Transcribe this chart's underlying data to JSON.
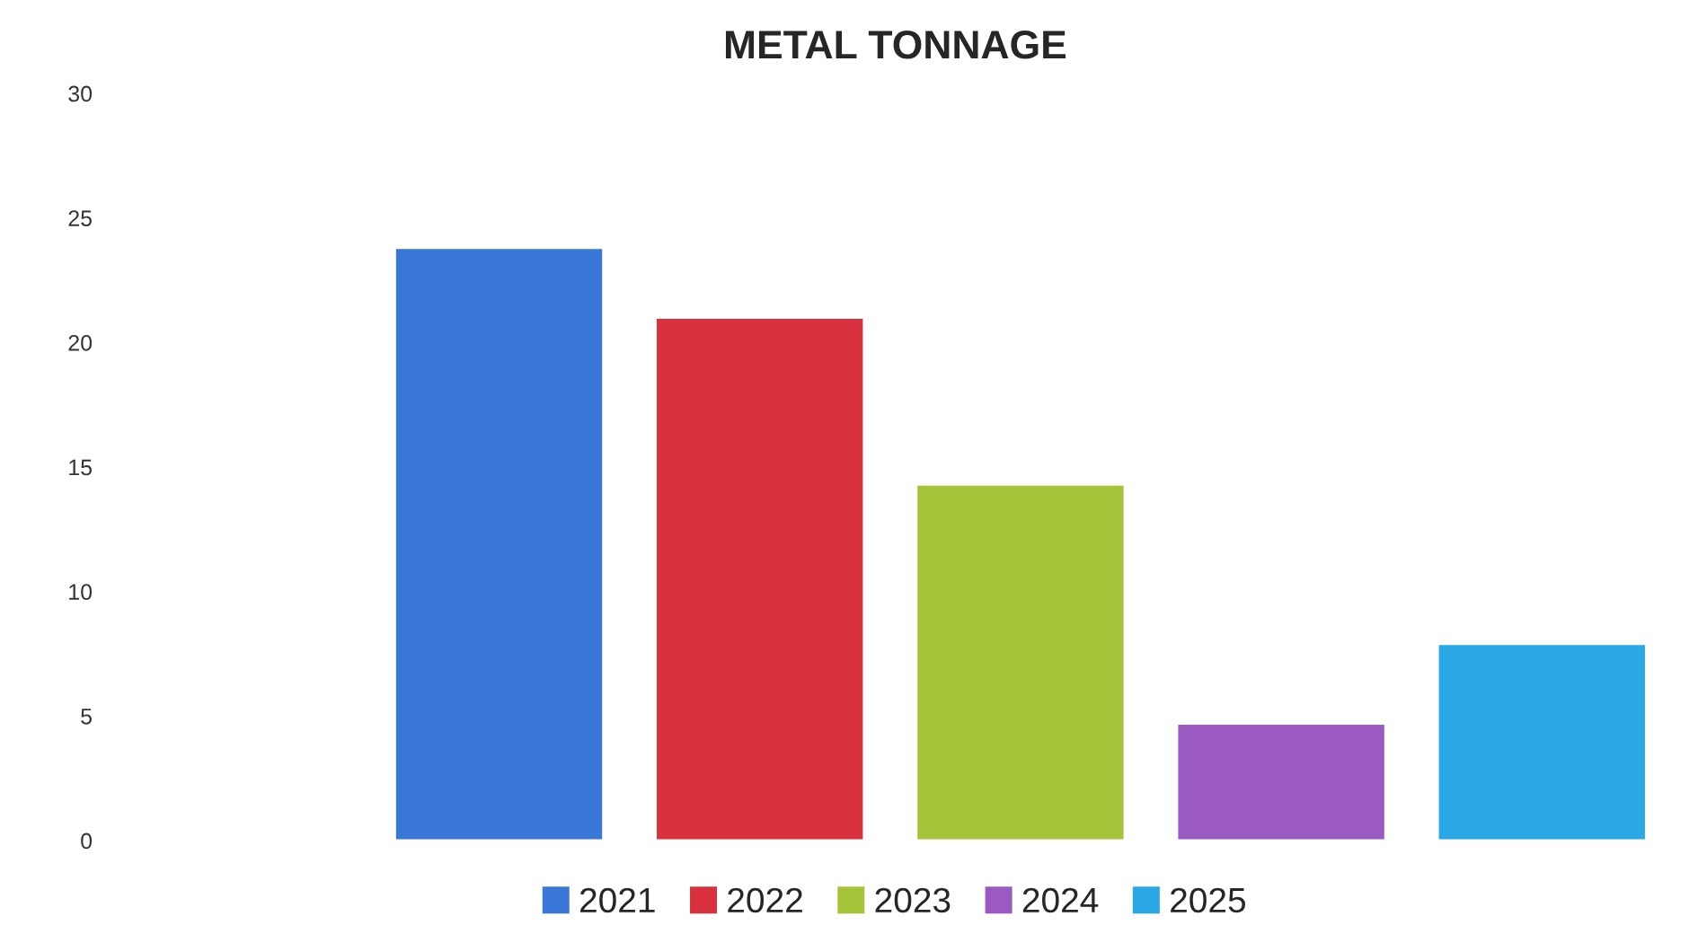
{
  "chart_data": {
    "type": "bar",
    "title": "METAL TONNAGE",
    "categories": [
      null
    ],
    "series": [
      {
        "name": "2021",
        "color": "#3a78d8",
        "values": [
          23.8
        ]
      },
      {
        "name": "2022",
        "color": "#d9323e",
        "values": [
          21.0
        ]
      },
      {
        "name": "2023",
        "color": "#a6c43a",
        "values": [
          14.3
        ]
      },
      {
        "name": "2024",
        "color": "#9b59c2",
        "values": [
          4.7
        ]
      },
      {
        "name": "2025",
        "color": "#2aa8e6",
        "values": [
          7.9
        ]
      }
    ],
    "ylim": [
      0,
      30
    ],
    "yticks": [
      0,
      5,
      10,
      15,
      20,
      25,
      30
    ],
    "grid": false,
    "legend": "bottom"
  }
}
